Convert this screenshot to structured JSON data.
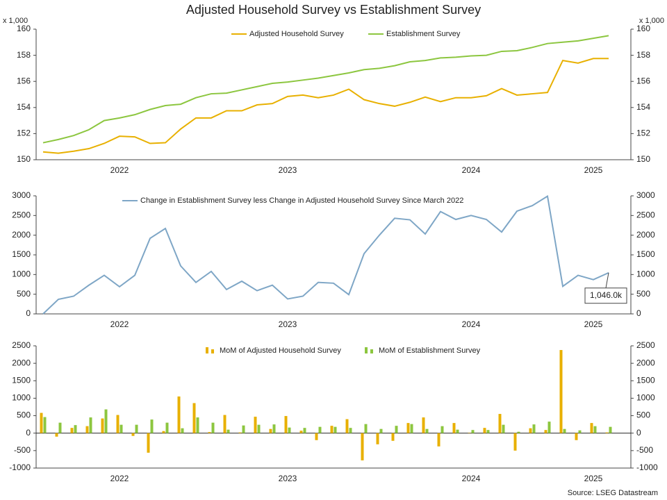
{
  "title": "Adjusted Household Survey vs Establishment Survey",
  "source": "Source: LSEG Datastream",
  "chart_data": [
    {
      "type": "line",
      "y_unit": "x 1,000",
      "categories": [
        null,
        null,
        null,
        null,
        null,
        "2022",
        null,
        null,
        null,
        null,
        null,
        null,
        null,
        null,
        null,
        null,
        "2023",
        null,
        null,
        null,
        null,
        null,
        null,
        null,
        null,
        null,
        null,
        null,
        "2024",
        null,
        null,
        null,
        null,
        null,
        null,
        null,
        "2025",
        null
      ],
      "ylim": [
        150,
        160
      ],
      "yticks": [
        150,
        152,
        154,
        156,
        158,
        160
      ],
      "legend": "top",
      "series": [
        {
          "name": "Adjusted Household Survey",
          "color": "#e8b000",
          "values": [
            150.6,
            150.5,
            150.65,
            150.85,
            151.25,
            151.8,
            151.75,
            151.25,
            151.3,
            152.35,
            153.2,
            153.2,
            153.75,
            153.75,
            154.2,
            154.3,
            154.85,
            154.95,
            154.75,
            154.95,
            155.4,
            154.6,
            154.3,
            154.1,
            154.4,
            154.8,
            154.45,
            154.75,
            154.75,
            154.9,
            155.45,
            154.95,
            155.05,
            155.15,
            157.6,
            157.4,
            157.75,
            157.75
          ]
        },
        {
          "name": "Establishment Survey",
          "color": "#8cc63f",
          "values": [
            151.3,
            151.55,
            151.85,
            152.3,
            153.0,
            153.2,
            153.45,
            153.85,
            154.15,
            154.25,
            154.75,
            155.05,
            155.1,
            155.35,
            155.6,
            155.85,
            155.95,
            156.1,
            156.25,
            156.45,
            156.65,
            156.9,
            157.0,
            157.2,
            157.5,
            157.6,
            157.8,
            157.85,
            157.95,
            158.0,
            158.3,
            158.35,
            158.6,
            158.9,
            159.0,
            159.1,
            159.3,
            159.5
          ]
        }
      ]
    },
    {
      "type": "line",
      "categories": [
        null,
        null,
        null,
        null,
        null,
        "2022",
        null,
        null,
        null,
        null,
        null,
        null,
        null,
        null,
        null,
        null,
        "2023",
        null,
        null,
        null,
        null,
        null,
        null,
        null,
        null,
        null,
        null,
        null,
        "2024",
        null,
        null,
        null,
        null,
        null,
        null,
        null,
        "2025",
        null
      ],
      "ylim": [
        0,
        3000
      ],
      "yticks": [
        0,
        500,
        1000,
        1500,
        2000,
        2500,
        3000
      ],
      "legend": "top",
      "annotation": "1,046.0k",
      "series": [
        {
          "name": "Change in Establishment Survey less Change in Adjusted Household Survey Since March 2022",
          "color": "#7ea6c6",
          "values": [
            0,
            370,
            450,
            730,
            980,
            690,
            980,
            1920,
            2170,
            1220,
            800,
            1080,
            620,
            830,
            590,
            730,
            380,
            450,
            800,
            780,
            490,
            1530,
            2000,
            2430,
            2390,
            2030,
            2600,
            2400,
            2500,
            2400,
            2080,
            2610,
            2750,
            2990,
            700,
            980,
            870,
            1046
          ]
        }
      ]
    },
    {
      "type": "bar",
      "categories": [
        null,
        null,
        null,
        null,
        null,
        "2022",
        null,
        null,
        null,
        null,
        null,
        null,
        null,
        null,
        null,
        null,
        "2023",
        null,
        null,
        null,
        null,
        null,
        null,
        null,
        null,
        null,
        null,
        null,
        "2024",
        null,
        null,
        null,
        null,
        null,
        null,
        null,
        "2025",
        null
      ],
      "ylim": [
        -1000,
        2500
      ],
      "yticks": [
        -1000,
        -500,
        0,
        500,
        1000,
        1500,
        2000,
        2500
      ],
      "legend": "top",
      "series": [
        {
          "name": "MoM of Adjusted Household Survey",
          "color": "#e8b000",
          "values": [
            580,
            -100,
            150,
            200,
            420,
            520,
            -80,
            -560,
            60,
            1050,
            860,
            30,
            520,
            20,
            470,
            120,
            490,
            70,
            -200,
            210,
            400,
            -780,
            -320,
            -220,
            290,
            450,
            -380,
            290,
            10,
            150,
            550,
            -500,
            140,
            90,
            2380,
            -200,
            290,
            20
          ]
        },
        {
          "name": "MoM of Establishment Survey",
          "color": "#8cc63f",
          "values": [
            460,
            300,
            230,
            450,
            680,
            240,
            240,
            390,
            300,
            140,
            450,
            300,
            100,
            220,
            240,
            250,
            160,
            150,
            180,
            180,
            150,
            260,
            120,
            210,
            260,
            120,
            200,
            100,
            90,
            90,
            240,
            40,
            250,
            330,
            120,
            80,
            200,
            180
          ]
        }
      ]
    }
  ]
}
